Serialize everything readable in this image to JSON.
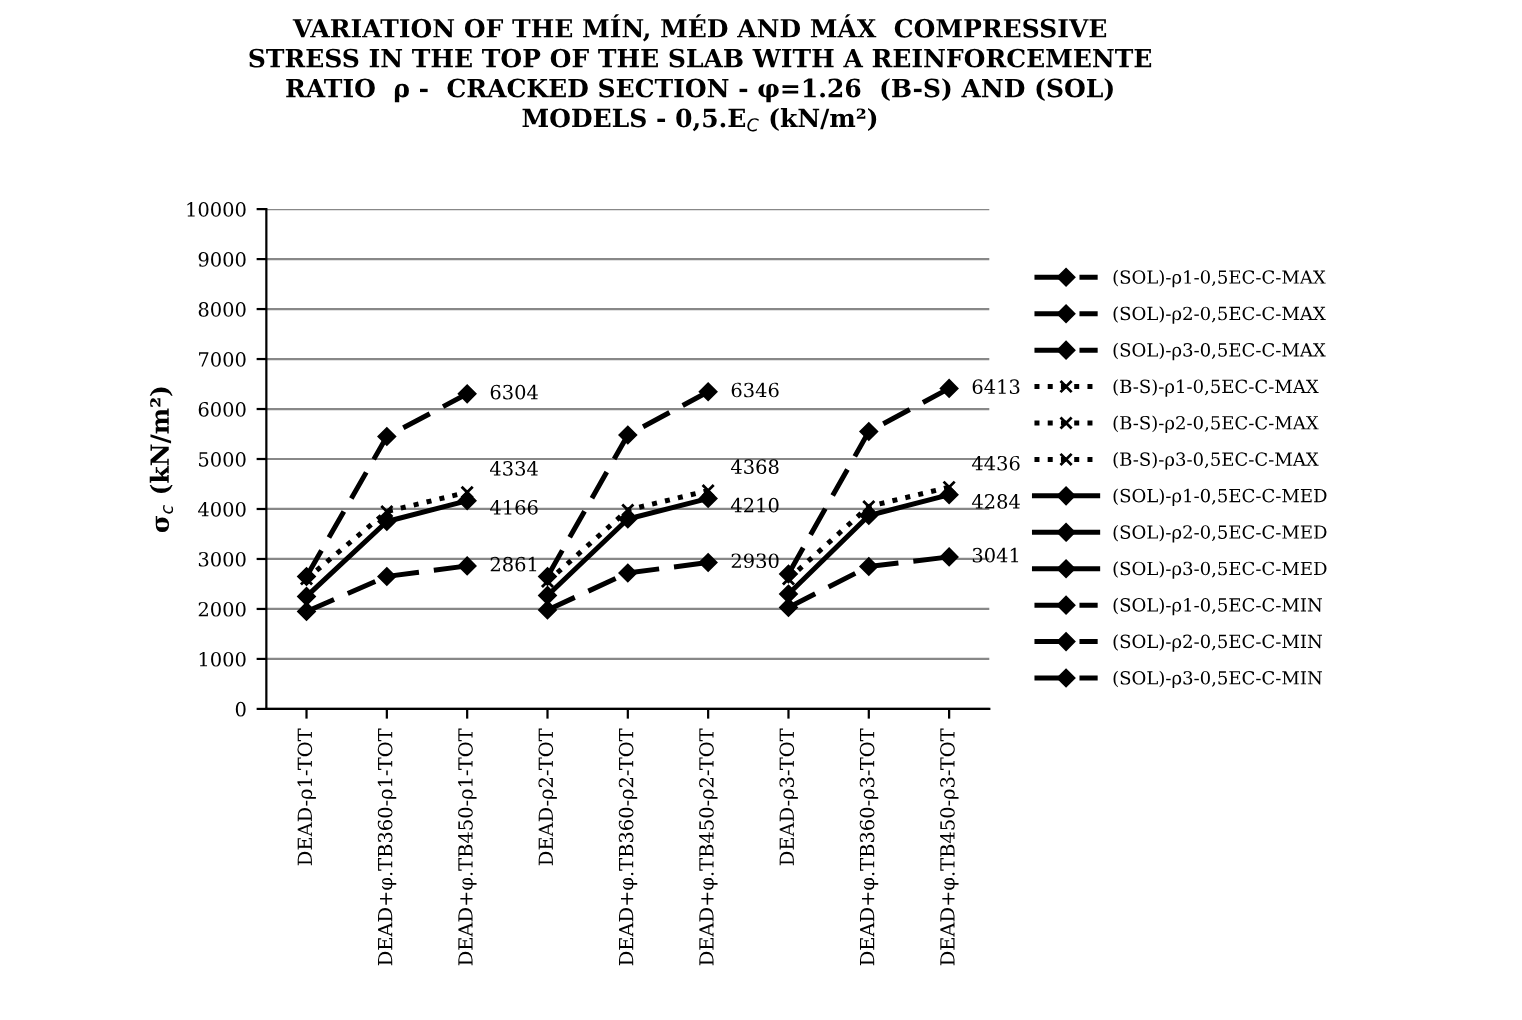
{
  "chart_data": {
    "type": "line",
    "title": "VARIATION OF THE MÍN, MÉD AND MÁX  COMPRESSIVE\nSTRESS IN THE TOP OF THE SLAB WITH A REINFORCEMENTE\nRATIO  ρ -  CRACKED SECTION - φ=1.26  (B-S) AND (SOL)\nMODELS - 0,5.E$_{C}$ (kN/m²)",
    "ylabel": "σ$_{c}$ (kN/m²)",
    "categories": [
      "DEAD-ρ1-TOT",
      "DEAD+φ.TB360-ρ1-TOT",
      "DEAD+φ.TB450-ρ1-TOT",
      "DEAD-ρ2-TOT",
      "DEAD+φ.TB360-ρ2-TOT",
      "DEAD+φ.TB450-ρ2-TOT",
      "DEAD-ρ3-TOT",
      "DEAD+φ.TB360-ρ3-TOT",
      "DEAD+φ.TB450-ρ3-TOT"
    ],
    "ylim": [
      0,
      10000
    ],
    "yticks": [
      0,
      1000,
      2000,
      3000,
      4000,
      5000,
      6000,
      7000,
      8000,
      9000,
      10000
    ],
    "grid": "y",
    "legend": "right",
    "series": [
      {
        "name": "(SOL)-ρ1-0,5EC-C-MAX",
        "color": "#000000",
        "marker": "diamond",
        "line_style": "dashed",
        "values": [
          2650,
          5450,
          6304,
          null,
          null,
          null,
          null,
          null,
          null
        ],
        "value_labels": [
          null,
          null,
          "6304",
          null,
          null,
          null,
          null,
          null,
          null
        ]
      },
      {
        "name": "(SOL)-ρ2-0,5EC-C-MAX",
        "color": "#000000",
        "marker": "diamond",
        "line_style": "dashed",
        "values": [
          null,
          null,
          null,
          2650,
          5480,
          6346,
          null,
          null,
          null
        ],
        "value_labels": [
          null,
          null,
          null,
          null,
          null,
          "6346",
          null,
          null,
          null
        ]
      },
      {
        "name": "(SOL)-ρ3-0,5EC-C-MAX",
        "color": "#000000",
        "marker": "diamond",
        "line_style": "dashed",
        "values": [
          null,
          null,
          null,
          null,
          null,
          null,
          2700,
          5550,
          6413
        ],
        "value_labels": [
          null,
          null,
          null,
          null,
          null,
          null,
          null,
          null,
          "6413"
        ]
      },
      {
        "name": "(B-S)-ρ1-0,5EC-C-MAX",
        "color": "#000000",
        "marker": "cross",
        "line_style": "dotted",
        "values": [
          2600,
          3950,
          4334,
          null,
          null,
          null,
          null,
          null,
          null
        ],
        "value_labels": [
          null,
          null,
          "4334",
          null,
          null,
          null,
          null,
          null,
          null
        ]
      },
      {
        "name": "(B-S)-ρ2-0,5EC-C-MAX",
        "color": "#000000",
        "marker": "cross",
        "line_style": "dotted",
        "values": [
          null,
          null,
          null,
          2550,
          3980,
          4368,
          null,
          null,
          null
        ],
        "value_labels": [
          null,
          null,
          null,
          null,
          null,
          "4368",
          null,
          null,
          null
        ]
      },
      {
        "name": "(B-S)-ρ3-0,5EC-C-MAX",
        "color": "#000000",
        "marker": "cross",
        "line_style": "dotted",
        "values": [
          null,
          null,
          null,
          null,
          null,
          null,
          2600,
          4050,
          4436
        ],
        "value_labels": [
          null,
          null,
          null,
          null,
          null,
          null,
          null,
          null,
          "4436"
        ]
      },
      {
        "name": "(SOL)-ρ1-0,5EC-C-MED",
        "color": "#000000",
        "marker": "diamond",
        "line_style": "solid",
        "values": [
          2250,
          3750,
          4166,
          null,
          null,
          null,
          null,
          null,
          null
        ],
        "value_labels": [
          null,
          null,
          "4166",
          null,
          null,
          null,
          null,
          null,
          null
        ]
      },
      {
        "name": "(SOL)-ρ2-0,5EC-C-MED",
        "color": "#000000",
        "marker": "diamond",
        "line_style": "solid",
        "values": [
          null,
          null,
          null,
          2270,
          3800,
          4210,
          null,
          null,
          null
        ],
        "value_labels": [
          null,
          null,
          null,
          null,
          null,
          "4210",
          null,
          null,
          null
        ]
      },
      {
        "name": "(SOL)-ρ3-0,5EC-C-MED",
        "color": "#000000",
        "marker": "diamond",
        "line_style": "solid",
        "values": [
          null,
          null,
          null,
          null,
          null,
          null,
          2300,
          3870,
          4284
        ],
        "value_labels": [
          null,
          null,
          null,
          null,
          null,
          null,
          null,
          null,
          "4284"
        ]
      },
      {
        "name": "(SOL)-ρ1-0,5EC-C-MIN",
        "color": "#000000",
        "marker": "diamond",
        "line_style": "dashed",
        "values": [
          1950,
          2650,
          2861,
          null,
          null,
          null,
          null,
          null,
          null
        ],
        "value_labels": [
          null,
          null,
          "2861",
          null,
          null,
          null,
          null,
          null,
          null
        ]
      },
      {
        "name": "(SOL)-ρ2-0,5EC-C-MIN",
        "color": "#000000",
        "marker": "diamond",
        "line_style": "dashed",
        "values": [
          null,
          null,
          null,
          1980,
          2720,
          2930,
          null,
          null,
          null
        ],
        "value_labels": [
          null,
          null,
          null,
          null,
          null,
          "2930",
          null,
          null,
          null
        ]
      },
      {
        "name": "(SOL)-ρ3-0,5EC-C-MIN",
        "color": "#000000",
        "marker": "diamond",
        "line_style": "dashed",
        "values": [
          null,
          null,
          null,
          null,
          null,
          null,
          2030,
          2850,
          3041
        ],
        "value_labels": [
          null,
          null,
          null,
          null,
          null,
          null,
          null,
          null,
          "3041"
        ]
      }
    ]
  }
}
